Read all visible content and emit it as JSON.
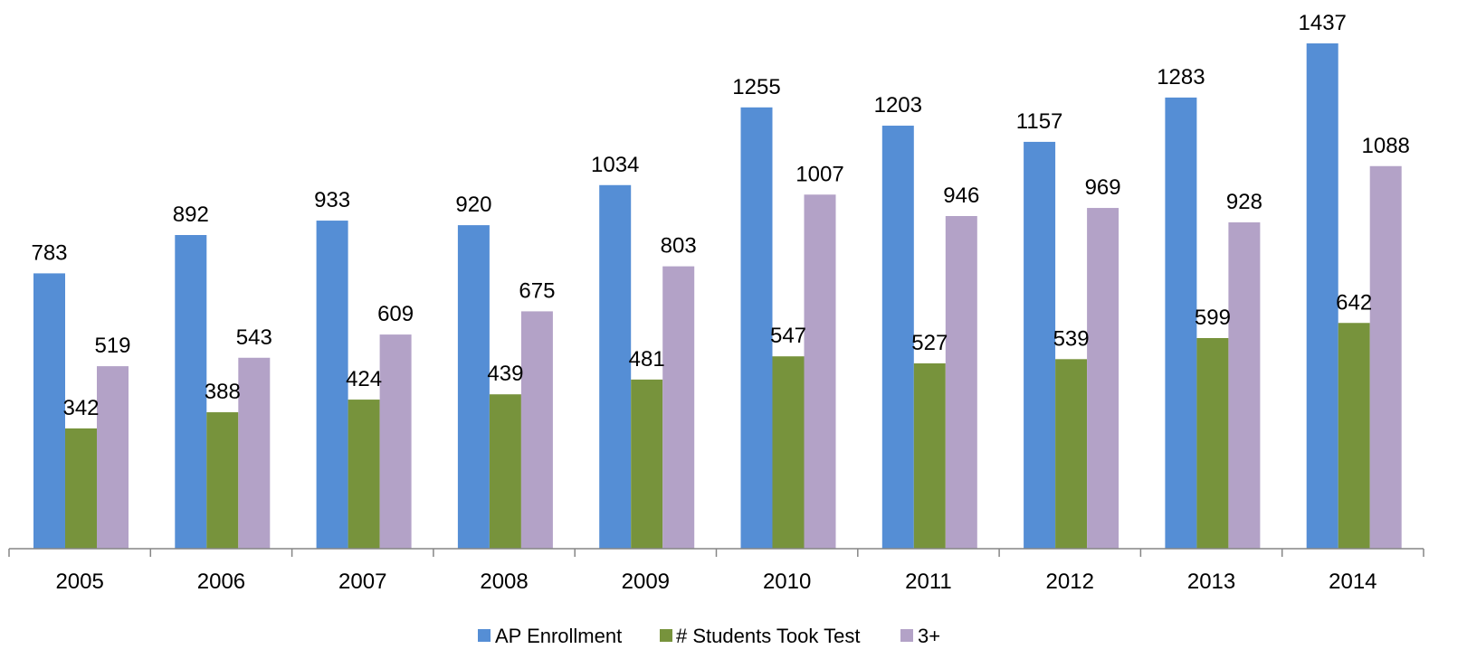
{
  "chart_data": {
    "type": "bar",
    "categories": [
      "2005",
      "2006",
      "2007",
      "2008",
      "2009",
      "2010",
      "2011",
      "2012",
      "2013",
      "2014"
    ],
    "series": [
      {
        "name": "AP Enrollment",
        "color": "#558ED5",
        "values": [
          783,
          892,
          933,
          920,
          1034,
          1255,
          1203,
          1157,
          1283,
          1437
        ]
      },
      {
        "name": "# Students Took Test",
        "color": "#77933C",
        "values": [
          342,
          388,
          424,
          439,
          481,
          547,
          527,
          539,
          599,
          642
        ]
      },
      {
        "name": "3+",
        "color": "#B3A2C7",
        "values": [
          519,
          543,
          609,
          675,
          803,
          1007,
          946,
          969,
          928,
          1088
        ]
      }
    ],
    "ylim": [
      0,
      1437
    ],
    "grid": false,
    "legend_position": "bottom",
    "data_labels": true
  }
}
